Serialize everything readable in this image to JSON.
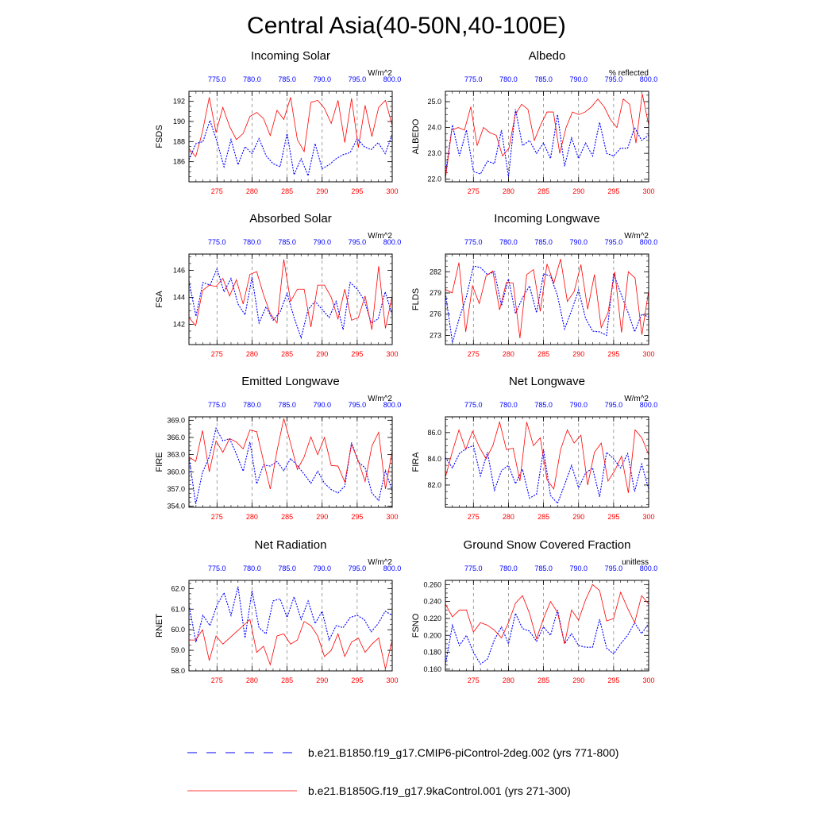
{
  "title": "Central Asia(40-50N,40-100E)",
  "legend": {
    "series": [
      {
        "label": "b.e21.B1850.f19_g17.CMIP6-piControl-2deg.002 (yrs 771-800)",
        "color": "#0000ff",
        "style": "dashed"
      },
      {
        "label": "b.e21.B1850G.f19_g17.9kaControl.001 (yrs 271-300)",
        "color": "#ff0000",
        "style": "solid"
      }
    ]
  },
  "chart_data": [
    {
      "type": "line",
      "title": "Incoming Solar",
      "ylabel": "FSDS",
      "units": "W/m^2",
      "xlim_bottom": [
        271,
        300
      ],
      "xticks_bottom": [
        "275",
        "280",
        "285",
        "290",
        "295",
        "300"
      ],
      "xlim_top": [
        771,
        800
      ],
      "xticks_top": [
        "775.0",
        "780.0",
        "785.0",
        "790.0",
        "795.0",
        "800.0"
      ],
      "ylim": [
        184.0,
        193.0
      ],
      "yticks": [
        "186",
        "188",
        "190",
        "192"
      ],
      "series": [
        {
          "color": "#0000ff",
          "style": "dashed",
          "years": "771-800",
          "values": [
            186.2,
            187.8,
            188.0,
            190.1,
            188.0,
            185.5,
            188.2,
            185.7,
            187.5,
            186.8,
            188.3,
            186.6,
            185.8,
            185.5,
            188.8,
            184.7,
            186.3,
            184.6,
            187.8,
            185.3,
            185.7,
            186.3,
            186.7,
            186.9,
            188.3,
            187.5,
            187.2,
            187.9,
            186.8,
            188.7
          ]
        },
        {
          "color": "#ff0000",
          "style": "solid",
          "years": "271-300",
          "values": [
            187.3,
            186.5,
            189.0,
            192.4,
            188.9,
            191.4,
            189.5,
            188.2,
            188.8,
            190.5,
            190.9,
            190.3,
            188.6,
            191.1,
            190.2,
            192.4,
            188.2,
            187.0,
            191.9,
            192.1,
            191.3,
            189.8,
            192.1,
            187.9,
            192.3,
            187.4,
            191.6,
            188.5,
            191.4,
            192.1,
            189.6
          ]
        }
      ]
    },
    {
      "type": "line",
      "title": "Albedo",
      "ylabel": "ALBEDO",
      "units": "% reflected",
      "xlim_bottom": [
        271,
        300
      ],
      "xticks_bottom": [
        "275",
        "280",
        "285",
        "290",
        "295",
        "300"
      ],
      "xlim_top": [
        771,
        800
      ],
      "xticks_top": [
        "775.0",
        "780.0",
        "785.0",
        "790.0",
        "795.0",
        "800.0"
      ],
      "ylim": [
        21.9,
        25.4
      ],
      "yticks": [
        "22.0",
        "23.0",
        "24.0",
        "25.0"
      ],
      "series": [
        {
          "color": "#0000ff",
          "style": "dashed",
          "years": "771-800",
          "values": [
            22.2,
            24.1,
            22.9,
            23.9,
            22.3,
            22.2,
            22.7,
            22.6,
            23.9,
            22.1,
            24.7,
            23.3,
            23.5,
            23.0,
            23.4,
            22.8,
            24.5,
            22.5,
            23.6,
            22.8,
            23.4,
            22.9,
            24.2,
            23.0,
            22.9,
            23.2,
            23.2,
            24.0,
            23.5,
            23.7
          ]
        },
        {
          "color": "#ff0000",
          "style": "solid",
          "years": "271-300",
          "values": [
            22.0,
            23.9,
            24.0,
            23.9,
            24.8,
            23.3,
            24.0,
            23.8,
            23.7,
            22.9,
            23.2,
            24.5,
            24.9,
            24.7,
            23.5,
            24.1,
            24.6,
            24.6,
            23.0,
            24.0,
            24.6,
            24.5,
            24.6,
            24.8,
            25.1,
            24.8,
            24.3,
            24.0,
            25.1,
            24.9,
            23.4,
            25.3,
            24.1
          ]
        }
      ]
    },
    {
      "type": "line",
      "title": "Absorbed Solar",
      "ylabel": "FSA",
      "units": "W/m^2",
      "xlim_bottom": [
        271,
        300
      ],
      "xticks_bottom": [
        "275",
        "280",
        "285",
        "290",
        "295",
        "300"
      ],
      "xlim_top": [
        771,
        800
      ],
      "xticks_top": [
        "775.0",
        "780.0",
        "785.0",
        "790.0",
        "795.0",
        "800.0"
      ],
      "ylim": [
        140.5,
        147.2
      ],
      "yticks": [
        "142",
        "144",
        "146"
      ],
      "series": [
        {
          "color": "#0000ff",
          "style": "dashed",
          "years": "771-800",
          "values": [
            145.2,
            142.6,
            145.1,
            144.9,
            146.1,
            144.4,
            145.4,
            143.5,
            142.7,
            145.5,
            142.1,
            143.3,
            142.3,
            142.9,
            144.3,
            142.5,
            141.0,
            143.1,
            143.7,
            143.1,
            142.5,
            143.7,
            141.6,
            145.1,
            144.6,
            143.8,
            142.1,
            142.4,
            144.4,
            142.7
          ]
        },
        {
          "color": "#ff0000",
          "style": "solid",
          "years": "271-300",
          "values": [
            142.5,
            141.9,
            144.5,
            144.9,
            144.8,
            145.4,
            144.1,
            145.3,
            143.5,
            145.7,
            145.9,
            144.2,
            142.8,
            142.1,
            146.8,
            143.7,
            144.6,
            144.6,
            141.8,
            144.9,
            144.9,
            144.0,
            142.4,
            144.6,
            142.3,
            142.5,
            144.1,
            141.6,
            146.3,
            141.7,
            144.1
          ]
        }
      ]
    },
    {
      "type": "line",
      "title": "Incoming Longwave",
      "ylabel": "FLDS",
      "units": "W/m^2",
      "xlim_bottom": [
        271,
        300
      ],
      "xticks_bottom": [
        "275",
        "280",
        "285",
        "290",
        "295",
        "300"
      ],
      "xlim_top": [
        771,
        800
      ],
      "xticks_top": [
        "775.0",
        "780.0",
        "785.0",
        "790.0",
        "795.0",
        "800.0"
      ],
      "ylim": [
        271.7,
        284.5
      ],
      "yticks": [
        "273",
        "276",
        "279",
        "282"
      ],
      "series": [
        {
          "color": "#0000ff",
          "style": "dashed",
          "years": "771-800",
          "values": [
            279.0,
            272.0,
            275.5,
            278.5,
            282.8,
            282.6,
            281.6,
            282.0,
            277.2,
            281.0,
            276.1,
            278.3,
            280.0,
            276.2,
            281.7,
            281.4,
            278.6,
            273.9,
            276.5,
            279.4,
            275.4,
            273.6,
            273.5,
            273.0,
            281.7,
            279.0,
            276.4,
            273.5,
            276.0,
            275.6
          ]
        },
        {
          "color": "#ff0000",
          "style": "solid",
          "years": "271-300",
          "values": [
            279.5,
            279.0,
            283.3,
            273.5,
            280.0,
            277.5,
            281.4,
            282.1,
            276.6,
            280.5,
            280.4,
            272.6,
            281.6,
            282.3,
            276.4,
            283.1,
            280.4,
            283.8,
            277.8,
            279.2,
            283.0,
            276.7,
            281.6,
            274.1,
            276.2,
            282.0,
            273.4,
            282.0,
            281.1,
            273.1,
            279.3
          ]
        }
      ]
    },
    {
      "type": "line",
      "title": "Emitted Longwave",
      "ylabel": "FIRE",
      "units": "W/m^2",
      "xlim_bottom": [
        271,
        300
      ],
      "xticks_bottom": [
        "275",
        "280",
        "285",
        "290",
        "295",
        "300"
      ],
      "xlim_top": [
        771,
        800
      ],
      "xticks_top": [
        "775.0",
        "780.0",
        "785.0",
        "790.0",
        "795.0",
        "800.0"
      ],
      "ylim": [
        353.8,
        369.6
      ],
      "yticks": [
        "354.0",
        "357.0",
        "360.0",
        "363.0",
        "366.0",
        "369.0"
      ],
      "series": [
        {
          "color": "#0000ff",
          "style": "dashed",
          "years": "771-800",
          "values": [
            362.6,
            354.4,
            359.9,
            362.6,
            367.6,
            365.4,
            365.8,
            363.1,
            360.1,
            365.2,
            357.9,
            361.2,
            361.0,
            361.8,
            360.2,
            362.3,
            361.1,
            359.6,
            358.0,
            360.1,
            358.0,
            356.9,
            356.3,
            357.5,
            365.1,
            361.7,
            360.7,
            356.3,
            355.0,
            360.2,
            356.7
          ]
        },
        {
          "color": "#ff0000",
          "style": "solid",
          "years": "271-300",
          "values": [
            362.6,
            361.8,
            367.2,
            360.0,
            365.4,
            363.4,
            365.8,
            365.2,
            364.0,
            367.3,
            367.0,
            361.9,
            357.0,
            363.7,
            369.3,
            365.0,
            360.4,
            362.6,
            366.1,
            363.0,
            366.0,
            361.1,
            361.0,
            358.2,
            364.8,
            361.9,
            358.3,
            364.5,
            366.9,
            357.0,
            363.7
          ]
        }
      ]
    },
    {
      "type": "line",
      "title": "Net Longwave",
      "ylabel": "FIRA",
      "units": "W/m^2",
      "xlim_bottom": [
        271,
        300
      ],
      "xticks_bottom": [
        "275",
        "280",
        "285",
        "290",
        "295",
        "300"
      ],
      "xlim_top": [
        771,
        800
      ],
      "xticks_top": [
        "775.0",
        "780.0",
        "785.0",
        "790.0",
        "795.0",
        "800.0"
      ],
      "ylim": [
        80.3,
        87.2
      ],
      "yticks": [
        "82.0",
        "84.0",
        "86.0"
      ],
      "series": [
        {
          "color": "#0000ff",
          "style": "dashed",
          "years": "771-800",
          "values": [
            84.1,
            83.3,
            84.4,
            84.8,
            85.0,
            82.7,
            84.5,
            81.6,
            83.1,
            83.5,
            82.1,
            83.2,
            81.0,
            81.3,
            84.7,
            81.2,
            80.6,
            82.0,
            83.5,
            81.8,
            82.9,
            83.3,
            81.1,
            84.5,
            84.0,
            83.3,
            84.4,
            81.5,
            83.6,
            81.7
          ]
        },
        {
          "color": "#ff0000",
          "style": "solid",
          "years": "271-300",
          "values": [
            82.6,
            84.5,
            86.2,
            84.7,
            86.1,
            84.9,
            84.0,
            85.0,
            86.8,
            84.7,
            84.8,
            82.3,
            86.8,
            85.0,
            85.6,
            82.4,
            81.7,
            84.7,
            86.2,
            85.2,
            85.8,
            82.0,
            84.5,
            85.2,
            82.3,
            83.1,
            84.2,
            81.4,
            86.2,
            85.6,
            84.3
          ]
        }
      ]
    },
    {
      "type": "line",
      "title": "Net Radiation",
      "ylabel": "RNET",
      "units": "W/m^2",
      "xlim_bottom": [
        271,
        300
      ],
      "xticks_bottom": [
        "275",
        "280",
        "285",
        "290",
        "295",
        "300"
      ],
      "xlim_top": [
        771,
        800
      ],
      "xticks_top": [
        "775.0",
        "780.0",
        "785.0",
        "790.0",
        "795.0",
        "800.0"
      ],
      "ylim": [
        58.0,
        62.4
      ],
      "yticks": [
        "58.0",
        "59.0",
        "60.0",
        "61.0",
        "62.0"
      ],
      "series": [
        {
          "color": "#0000ff",
          "style": "dashed",
          "years": "771-800",
          "values": [
            61.2,
            59.4,
            60.7,
            60.2,
            61.2,
            61.8,
            60.7,
            62.1,
            59.6,
            61.9,
            60.1,
            59.8,
            61.4,
            61.5,
            60.6,
            61.6,
            60.5,
            61.4,
            60.3,
            60.9,
            59.5,
            60.2,
            60.1,
            60.6,
            60.7,
            60.5,
            59.9,
            60.3,
            60.9,
            60.7
          ]
        },
        {
          "color": "#ff0000",
          "style": "solid",
          "years": "271-300",
          "values": [
            59.5,
            59.5,
            60.0,
            58.5,
            59.7,
            59.3,
            59.6,
            59.9,
            60.2,
            60.5,
            58.9,
            59.2,
            58.3,
            59.7,
            59.8,
            59.3,
            59.5,
            60.4,
            60.2,
            59.7,
            58.7,
            59.0,
            59.8,
            58.7,
            59.4,
            59.6,
            58.9,
            59.3,
            59.6,
            58.1,
            59.5
          ]
        }
      ]
    },
    {
      "type": "line",
      "title": "Ground Snow Covered Fraction",
      "ylabel": "FSNO",
      "units": "unitless",
      "xlim_bottom": [
        271,
        300
      ],
      "xticks_bottom": [
        "275",
        "280",
        "285",
        "290",
        "295",
        "300"
      ],
      "xlim_top": [
        771,
        800
      ],
      "xticks_top": [
        "775.0",
        "780.0",
        "785.0",
        "790.0",
        "795.0",
        "800.0"
      ],
      "ylim": [
        0.158,
        0.265
      ],
      "yticks": [
        "0.160",
        "0.180",
        "0.200",
        "0.220",
        "0.240",
        "0.260"
      ],
      "series": [
        {
          "color": "#0000ff",
          "style": "dashed",
          "years": "771-800",
          "values": [
            0.165,
            0.212,
            0.188,
            0.2,
            0.18,
            0.166,
            0.172,
            0.195,
            0.21,
            0.19,
            0.226,
            0.208,
            0.205,
            0.193,
            0.21,
            0.2,
            0.23,
            0.19,
            0.202,
            0.188,
            0.186,
            0.186,
            0.219,
            0.185,
            0.178,
            0.19,
            0.2,
            0.215,
            0.202,
            0.214
          ]
        },
        {
          "color": "#ff0000",
          "style": "solid",
          "years": "271-300",
          "values": [
            0.237,
            0.222,
            0.23,
            0.23,
            0.204,
            0.215,
            0.212,
            0.206,
            0.197,
            0.215,
            0.238,
            0.247,
            0.226,
            0.196,
            0.22,
            0.24,
            0.227,
            0.19,
            0.23,
            0.218,
            0.242,
            0.26,
            0.253,
            0.217,
            0.22,
            0.251,
            0.232,
            0.215,
            0.247,
            0.237
          ]
        }
      ]
    }
  ]
}
